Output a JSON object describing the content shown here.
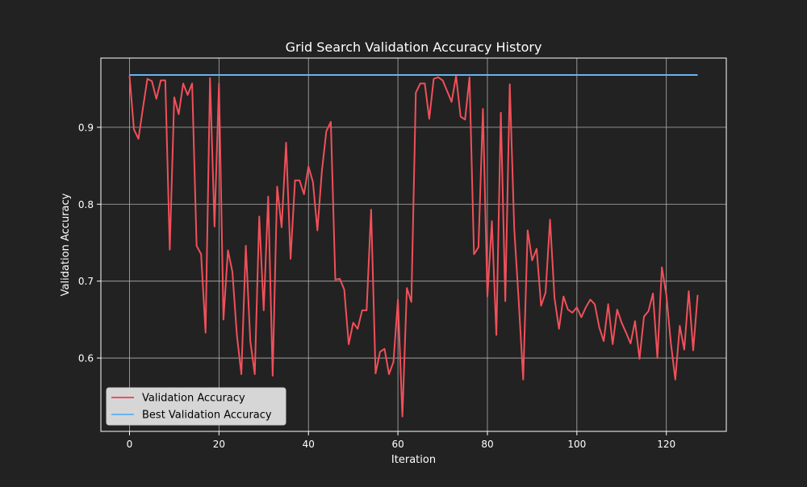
{
  "theme": {
    "background": "#222222",
    "plot_background": "#222222",
    "axis_color": "#ffffff",
    "grid_color": "#b0b0b0",
    "legend_background": "#d6d6d6"
  },
  "chart_data": {
    "type": "line",
    "title": "Grid Search Validation Accuracy History",
    "xlabel": "Iteration",
    "ylabel": "Validation Accuracy",
    "xlim": [
      -6.4,
      133.4
    ],
    "ylim": [
      0.5047,
      0.99
    ],
    "xticks": [
      0,
      20,
      40,
      60,
      80,
      100,
      120
    ],
    "xtick_labels": [
      "0",
      "20",
      "40",
      "60",
      "80",
      "100",
      "120"
    ],
    "yticks": [
      0.6,
      0.7,
      0.8,
      0.9
    ],
    "ytick_labels": [
      "0.6",
      "0.7",
      "0.8",
      "0.9"
    ],
    "grid": true,
    "legend_position": "lower-left",
    "series": [
      {
        "name": "Validation Accuracy",
        "color": "#f0505a",
        "x": [
          0,
          1,
          2,
          3,
          4,
          5,
          6,
          7,
          8,
          9,
          10,
          11,
          12,
          13,
          14,
          15,
          16,
          17,
          18,
          19,
          20,
          21,
          22,
          23,
          24,
          25,
          26,
          27,
          28,
          29,
          30,
          31,
          32,
          33,
          34,
          35,
          36,
          37,
          38,
          39,
          40,
          41,
          42,
          43,
          44,
          45,
          46,
          47,
          48,
          49,
          50,
          51,
          52,
          53,
          54,
          55,
          56,
          57,
          58,
          59,
          60,
          61,
          62,
          63,
          64,
          65,
          66,
          67,
          68,
          69,
          70,
          71,
          72,
          73,
          74,
          75,
          76,
          77,
          78,
          79,
          80,
          81,
          82,
          83,
          84,
          85,
          86,
          87,
          88,
          89,
          90,
          91,
          92,
          93,
          94,
          95,
          96,
          97,
          98,
          99,
          100,
          101,
          102,
          103,
          104,
          105,
          106,
          107,
          108,
          109,
          110,
          111,
          112,
          113,
          114,
          115,
          116,
          117,
          118,
          119,
          120,
          121,
          122,
          123,
          124,
          125,
          126,
          127
        ],
        "values": [
          0.967,
          0.897,
          0.885,
          0.925,
          0.963,
          0.96,
          0.937,
          0.961,
          0.961,
          0.741,
          0.939,
          0.917,
          0.957,
          0.942,
          0.957,
          0.746,
          0.735,
          0.633,
          0.964,
          0.771,
          0.957,
          0.65,
          0.74,
          0.712,
          0.63,
          0.579,
          0.746,
          0.622,
          0.579,
          0.784,
          0.662,
          0.81,
          0.577,
          0.823,
          0.77,
          0.88,
          0.729,
          0.831,
          0.831,
          0.813,
          0.849,
          0.829,
          0.766,
          0.843,
          0.895,
          0.907,
          0.702,
          0.703,
          0.689,
          0.618,
          0.646,
          0.638,
          0.662,
          0.662,
          0.793,
          0.58,
          0.608,
          0.612,
          0.579,
          0.595,
          0.676,
          0.524,
          0.691,
          0.673,
          0.945,
          0.957,
          0.957,
          0.911,
          0.963,
          0.965,
          0.961,
          0.947,
          0.933,
          0.967,
          0.914,
          0.91,
          0.965,
          0.735,
          0.744,
          0.924,
          0.68,
          0.778,
          0.63,
          0.919,
          0.674,
          0.956,
          0.768,
          0.674,
          0.572,
          0.766,
          0.727,
          0.742,
          0.668,
          0.685,
          0.78,
          0.678,
          0.638,
          0.68,
          0.663,
          0.659,
          0.666,
          0.653,
          0.666,
          0.676,
          0.67,
          0.64,
          0.622,
          0.67,
          0.618,
          0.663,
          0.646,
          0.633,
          0.619,
          0.648,
          0.599,
          0.654,
          0.661,
          0.684,
          0.6,
          0.718,
          0.682,
          0.62,
          0.572,
          0.642,
          0.611,
          0.687,
          0.61,
          0.682
        ]
      },
      {
        "name": "Best Validation Accuracy",
        "color": "#68b4f2",
        "x": [
          0,
          127
        ],
        "values": [
          0.968,
          0.968
        ]
      }
    ]
  }
}
